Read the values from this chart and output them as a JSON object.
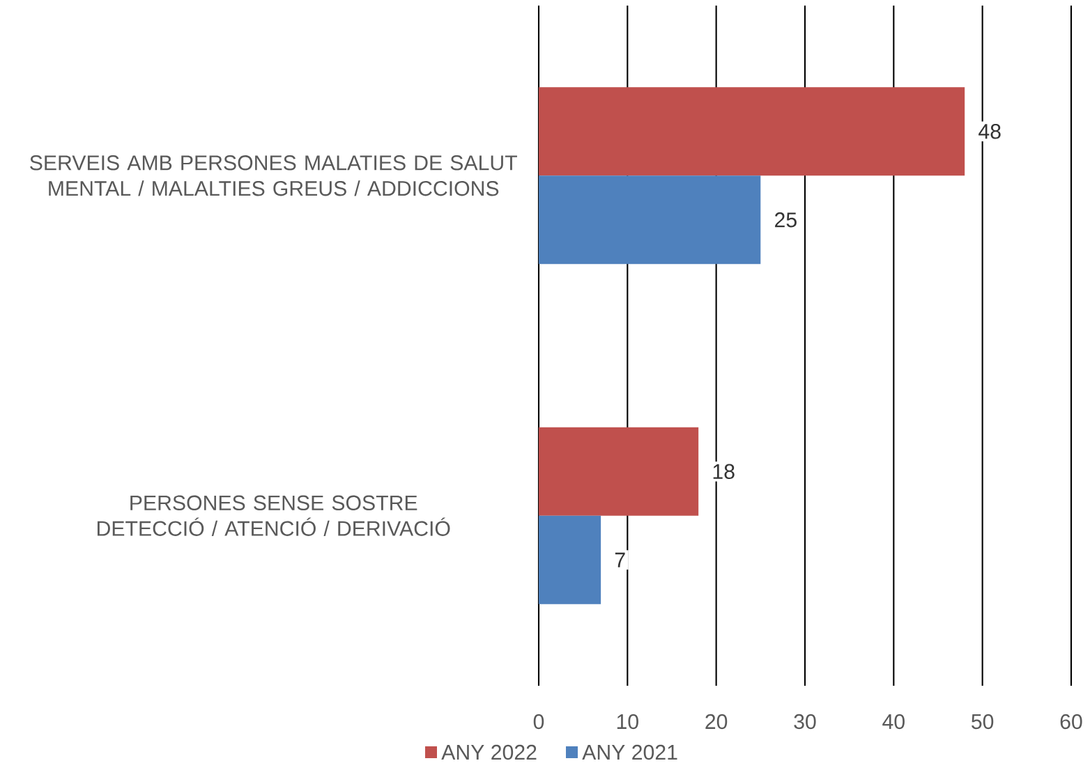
{
  "chart_data": {
    "type": "bar",
    "orientation": "horizontal",
    "categories": [
      "SERVEIS AMB PERSONES MALATIES DE SALUT MENTAL / MALALTIES GREUS / ADDICCIONS",
      "PERSONES SENSE SOSTRE DETECCIÓ / ATENCIÓ / DERIVACIÓ"
    ],
    "series": [
      {
        "name": "ANY 2022",
        "color": "#c0504d",
        "values": [
          48,
          18
        ]
      },
      {
        "name": "ANY 2021",
        "color": "#4f81bd",
        "values": [
          25,
          7
        ]
      }
    ],
    "xlim": [
      0,
      60
    ],
    "xticks": [
      0,
      10,
      20,
      30,
      40,
      50,
      60
    ],
    "grid": "x",
    "data_labels": true,
    "legend": "bottom"
  }
}
